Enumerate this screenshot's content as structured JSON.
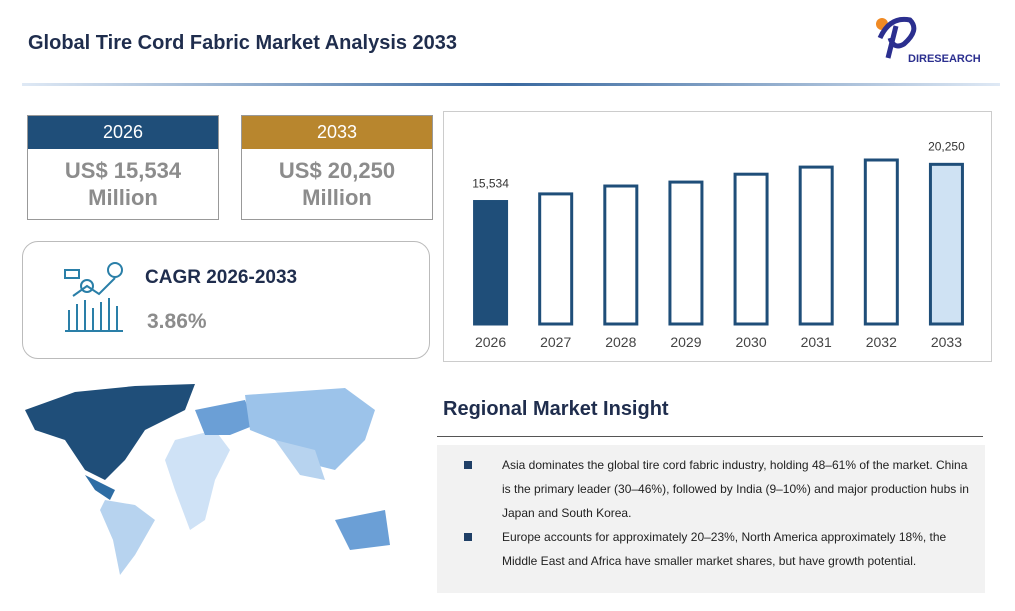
{
  "header": {
    "title": "Global Tire Cord Fabric Market Analysis 2033",
    "logo": "DIRESEARCH"
  },
  "cards": [
    {
      "year": "2026",
      "value": "US$ 15,534",
      "unit": "Million"
    },
    {
      "year": "2033",
      "value": "US$ 20,250",
      "unit": "Million"
    }
  ],
  "cagr": {
    "label": "CAGR 2026-2033",
    "value": "3.86%"
  },
  "chart_data": {
    "type": "bar",
    "categories": [
      "2026",
      "2027",
      "2028",
      "2029",
      "2030",
      "2031",
      "2032",
      "2033"
    ],
    "values": [
      15534,
      16500,
      17500,
      18000,
      19000,
      19900,
      20800,
      20250
    ],
    "value_labels": [
      "15,534",
      null,
      null,
      null,
      null,
      null,
      null,
      "20,250"
    ],
    "colors": [
      "#1f4e79",
      "#ffffff",
      "#ffffff",
      "#ffffff",
      "#ffffff",
      "#ffffff",
      "#ffffff",
      "#cfe2f3"
    ],
    "stroke": "#1f4e79"
  },
  "insight": {
    "title": "Regional Market Insight",
    "bullets": [
      "Asia dominates the global tire cord fabric industry, holding 48–61% of the market. China is the primary leader (30–46%), followed by India (9–10%) and major production hubs in Japan and South Korea.",
      "Europe accounts for approximately 20–23%, North America approximately 18%, the Middle East and Africa have smaller market shares, but have growth potential."
    ]
  }
}
